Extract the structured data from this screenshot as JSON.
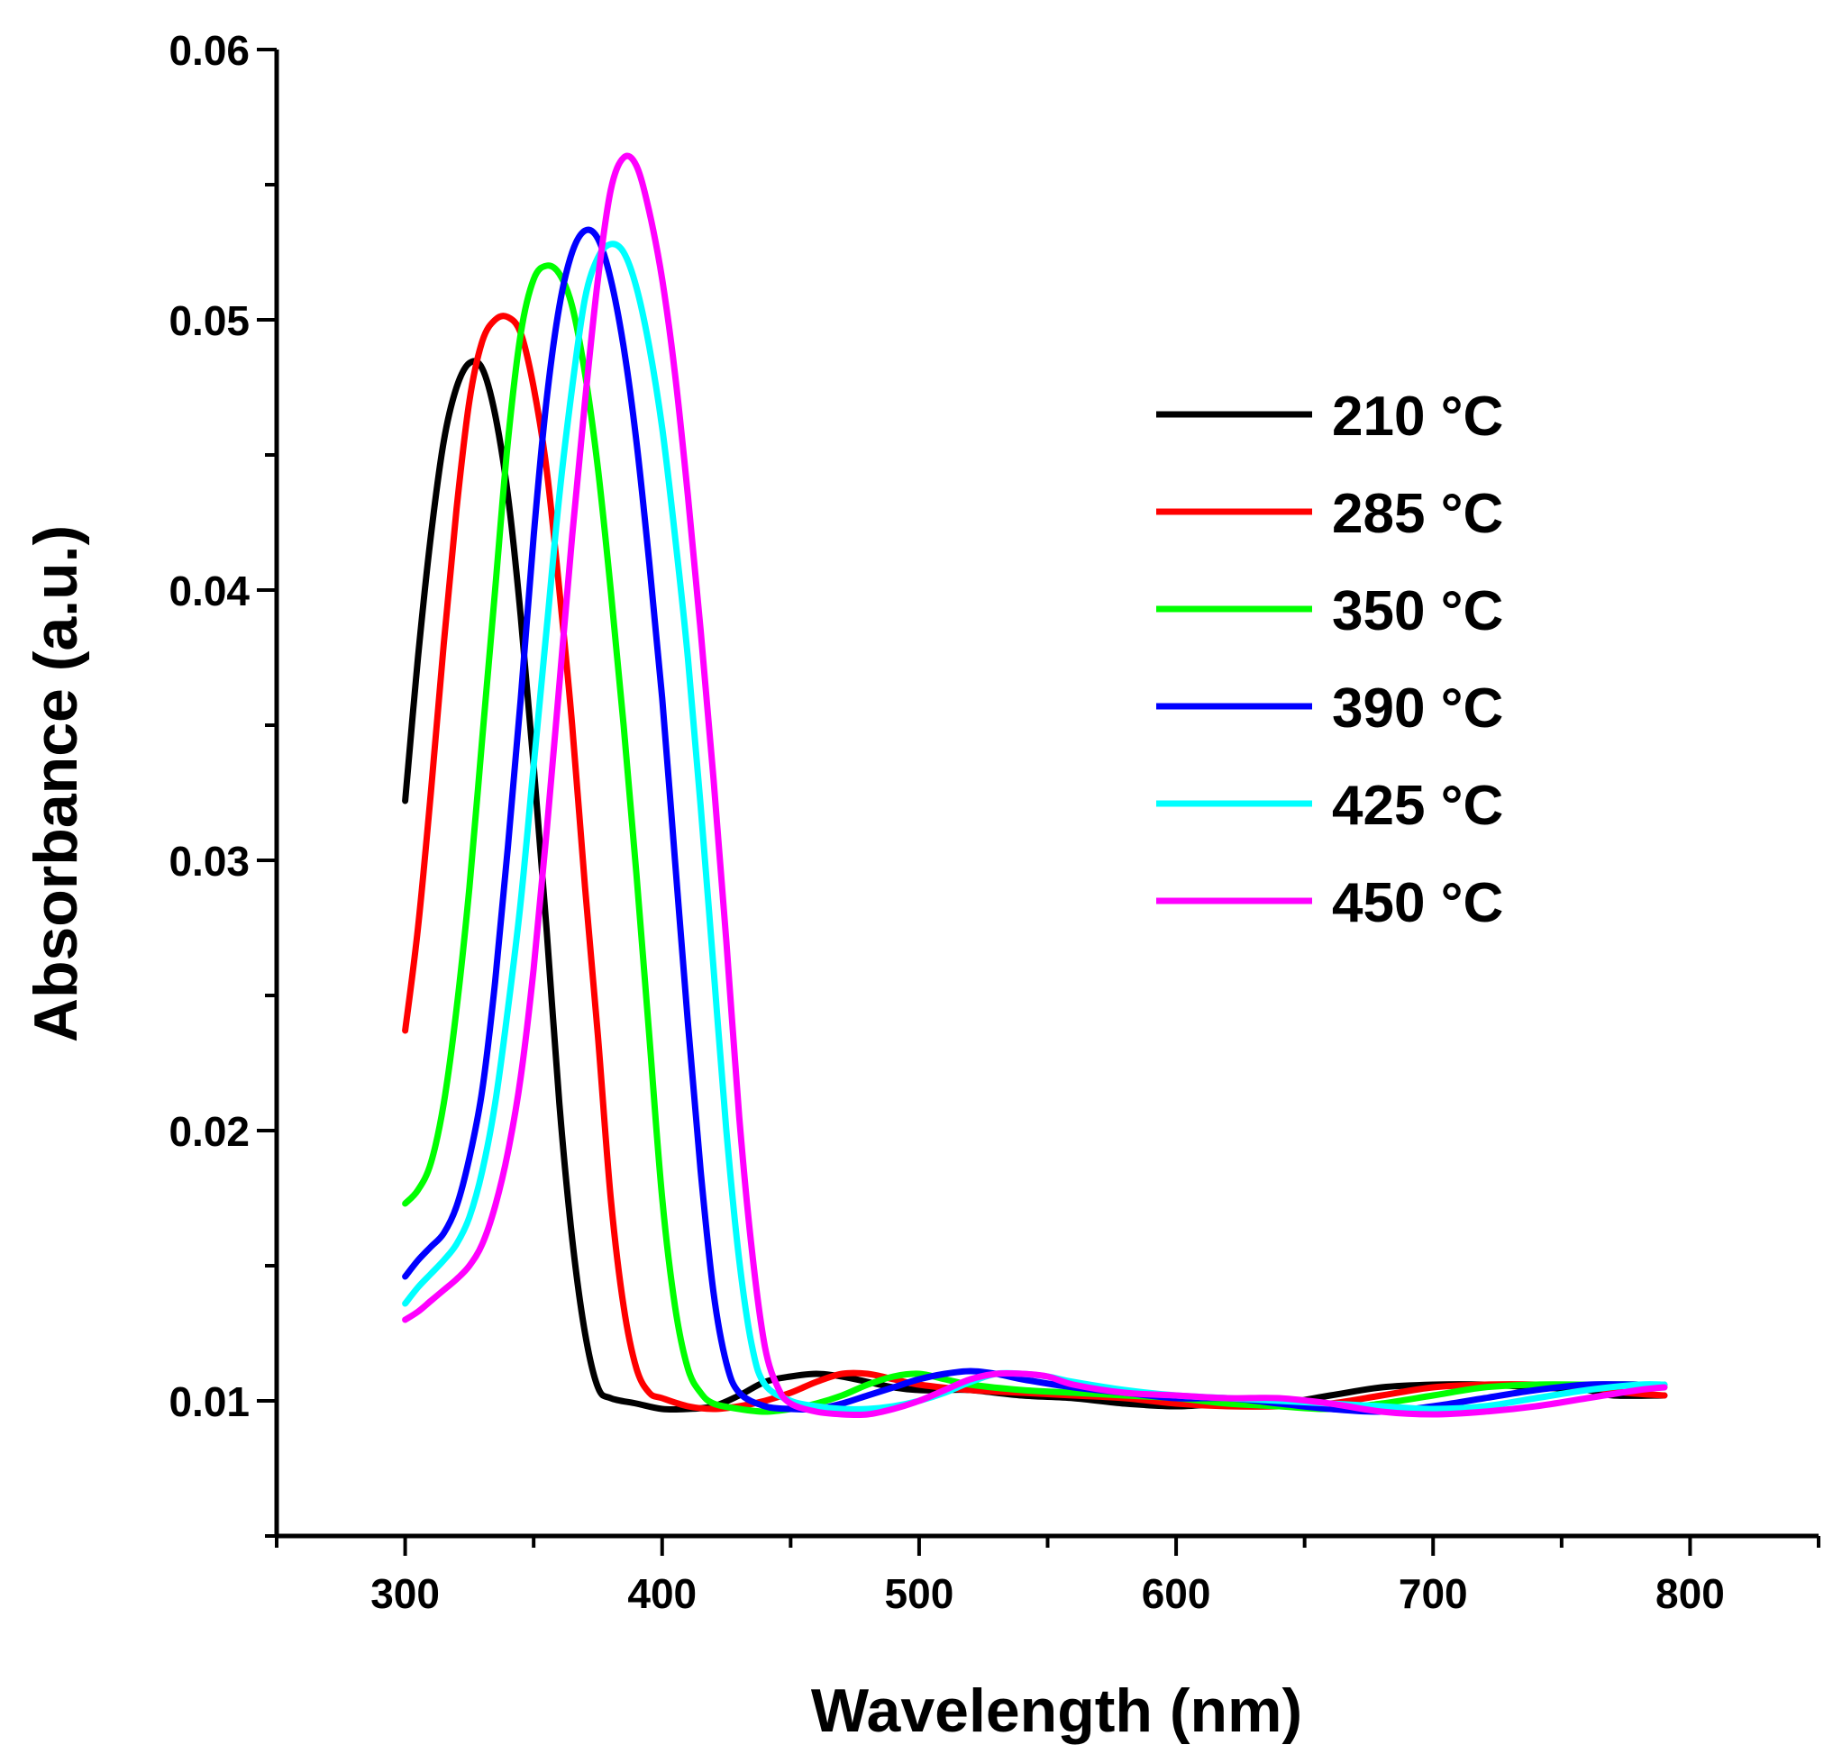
{
  "chart_data": {
    "type": "line",
    "title": "",
    "xlabel": "Wavelength (nm)",
    "ylabel": "Absorbance (a.u.)",
    "xlim": [
      250,
      850
    ],
    "ylim": [
      0.005,
      0.06
    ],
    "x_ticks": [
      300,
      400,
      500,
      600,
      700,
      800
    ],
    "x_tick_labels": [
      "300",
      "400",
      "500",
      "600",
      "700",
      "800"
    ],
    "x_minor_ticks": [
      250,
      350,
      450,
      550,
      650,
      750,
      850
    ],
    "y_ticks": [
      0.01,
      0.02,
      0.03,
      0.04,
      0.05,
      0.06
    ],
    "y_tick_labels": [
      "0.01",
      "0.02",
      "0.03",
      "0.04",
      "0.05",
      "0.06"
    ],
    "y_minor_ticks": [
      0.005,
      0.015,
      0.025,
      0.035,
      0.045,
      0.055
    ],
    "grid": false,
    "legend_position": "right, upper-middle",
    "series": [
      {
        "name": "210 °C",
        "color": "#000000",
        "points": [
          [
            300,
            0.0322
          ],
          [
            305,
            0.0375
          ],
          [
            310,
            0.042
          ],
          [
            315,
            0.0455
          ],
          [
            320,
            0.0475
          ],
          [
            325,
            0.0484
          ],
          [
            330,
            0.0482
          ],
          [
            335,
            0.0465
          ],
          [
            340,
            0.0435
          ],
          [
            345,
            0.039
          ],
          [
            350,
            0.0335
          ],
          [
            355,
            0.0275
          ],
          [
            360,
            0.021
          ],
          [
            365,
            0.016
          ],
          [
            370,
            0.0125
          ],
          [
            375,
            0.0105
          ],
          [
            380,
            0.0101
          ],
          [
            390,
            0.0099
          ],
          [
            400,
            0.0097
          ],
          [
            410,
            0.0097
          ],
          [
            420,
            0.0098
          ],
          [
            430,
            0.0102
          ],
          [
            440,
            0.0107
          ],
          [
            450,
            0.0109
          ],
          [
            460,
            0.011
          ],
          [
            470,
            0.0109
          ],
          [
            480,
            0.0107
          ],
          [
            490,
            0.0105
          ],
          [
            500,
            0.0104
          ],
          [
            510,
            0.0104
          ],
          [
            520,
            0.0104
          ],
          [
            540,
            0.0102
          ],
          [
            560,
            0.0101
          ],
          [
            580,
            0.0099
          ],
          [
            600,
            0.0098
          ],
          [
            620,
            0.0099
          ],
          [
            640,
            0.0099
          ],
          [
            660,
            0.0102
          ],
          [
            680,
            0.0105
          ],
          [
            700,
            0.0106
          ],
          [
            720,
            0.0106
          ],
          [
            740,
            0.0105
          ],
          [
            760,
            0.0104
          ],
          [
            770,
            0.0102
          ],
          [
            790,
            0.0102
          ]
        ]
      },
      {
        "name": "285 °C",
        "color": "#ff0000",
        "points": [
          [
            300,
            0.0237
          ],
          [
            305,
            0.0275
          ],
          [
            310,
            0.0325
          ],
          [
            315,
            0.038
          ],
          [
            320,
            0.043
          ],
          [
            325,
            0.047
          ],
          [
            330,
            0.0492
          ],
          [
            335,
            0.05
          ],
          [
            340,
            0.0501
          ],
          [
            345,
            0.0495
          ],
          [
            350,
            0.0475
          ],
          [
            355,
            0.0445
          ],
          [
            360,
            0.04
          ],
          [
            365,
            0.035
          ],
          [
            370,
            0.029
          ],
          [
            375,
            0.0235
          ],
          [
            380,
            0.0175
          ],
          [
            385,
            0.0135
          ],
          [
            390,
            0.0112
          ],
          [
            395,
            0.0103
          ],
          [
            400,
            0.0101
          ],
          [
            410,
            0.0098
          ],
          [
            420,
            0.0097
          ],
          [
            430,
            0.0098
          ],
          [
            440,
            0.01
          ],
          [
            450,
            0.0103
          ],
          [
            460,
            0.0107
          ],
          [
            470,
            0.011
          ],
          [
            480,
            0.011
          ],
          [
            490,
            0.0108
          ],
          [
            500,
            0.0106
          ],
          [
            520,
            0.0104
          ],
          [
            540,
            0.0103
          ],
          [
            560,
            0.0102
          ],
          [
            580,
            0.0101
          ],
          [
            600,
            0.0099
          ],
          [
            620,
            0.0098
          ],
          [
            640,
            0.0098
          ],
          [
            660,
            0.0099
          ],
          [
            680,
            0.0102
          ],
          [
            700,
            0.0105
          ],
          [
            720,
            0.0106
          ],
          [
            740,
            0.0106
          ],
          [
            760,
            0.0105
          ],
          [
            775,
            0.0103
          ],
          [
            790,
            0.0102
          ]
        ]
      },
      {
        "name": "350 °C",
        "color": "#00ff00",
        "points": [
          [
            300,
            0.0173
          ],
          [
            305,
            0.0178
          ],
          [
            310,
            0.0188
          ],
          [
            315,
            0.021
          ],
          [
            320,
            0.0245
          ],
          [
            325,
            0.029
          ],
          [
            330,
            0.0345
          ],
          [
            335,
            0.04
          ],
          [
            340,
            0.0455
          ],
          [
            345,
            0.0495
          ],
          [
            350,
            0.0515
          ],
          [
            355,
            0.052
          ],
          [
            360,
            0.0517
          ],
          [
            365,
            0.0505
          ],
          [
            370,
            0.048
          ],
          [
            375,
            0.0445
          ],
          [
            380,
            0.04
          ],
          [
            385,
            0.035
          ],
          [
            390,
            0.0295
          ],
          [
            395,
            0.0235
          ],
          [
            400,
            0.0175
          ],
          [
            405,
            0.0135
          ],
          [
            410,
            0.0112
          ],
          [
            415,
            0.0103
          ],
          [
            420,
            0.0099
          ],
          [
            430,
            0.0097
          ],
          [
            440,
            0.0096
          ],
          [
            450,
            0.0097
          ],
          [
            460,
            0.0099
          ],
          [
            470,
            0.0102
          ],
          [
            480,
            0.0106
          ],
          [
            490,
            0.0109
          ],
          [
            500,
            0.011
          ],
          [
            510,
            0.0108
          ],
          [
            520,
            0.0106
          ],
          [
            540,
            0.0104
          ],
          [
            560,
            0.0103
          ],
          [
            580,
            0.0102
          ],
          [
            600,
            0.0101
          ],
          [
            620,
            0.0099
          ],
          [
            640,
            0.0098
          ],
          [
            660,
            0.0097
          ],
          [
            680,
            0.0099
          ],
          [
            700,
            0.0102
          ],
          [
            720,
            0.0105
          ],
          [
            740,
            0.0106
          ],
          [
            760,
            0.0106
          ],
          [
            780,
            0.0106
          ],
          [
            790,
            0.0105
          ]
        ]
      },
      {
        "name": "390 °C",
        "color": "#0000ff",
        "points": [
          [
            300,
            0.0146
          ],
          [
            305,
            0.0152
          ],
          [
            310,
            0.0157
          ],
          [
            315,
            0.0162
          ],
          [
            320,
            0.0172
          ],
          [
            325,
            0.019
          ],
          [
            330,
            0.0215
          ],
          [
            335,
            0.0255
          ],
          [
            340,
            0.0305
          ],
          [
            345,
            0.036
          ],
          [
            350,
            0.042
          ],
          [
            355,
            0.047
          ],
          [
            360,
            0.0505
          ],
          [
            365,
            0.0525
          ],
          [
            370,
            0.0533
          ],
          [
            375,
            0.053
          ],
          [
            380,
            0.0515
          ],
          [
            385,
            0.049
          ],
          [
            390,
            0.0455
          ],
          [
            395,
            0.041
          ],
          [
            400,
            0.036
          ],
          [
            405,
            0.03
          ],
          [
            410,
            0.024
          ],
          [
            415,
            0.0185
          ],
          [
            420,
            0.014
          ],
          [
            425,
            0.0114
          ],
          [
            430,
            0.0103
          ],
          [
            440,
            0.0098
          ],
          [
            450,
            0.0097
          ],
          [
            460,
            0.0097
          ],
          [
            470,
            0.0099
          ],
          [
            480,
            0.0102
          ],
          [
            490,
            0.0105
          ],
          [
            500,
            0.0108
          ],
          [
            510,
            0.011
          ],
          [
            520,
            0.0111
          ],
          [
            530,
            0.011
          ],
          [
            540,
            0.0108
          ],
          [
            560,
            0.0105
          ],
          [
            580,
            0.0103
          ],
          [
            600,
            0.0101
          ],
          [
            620,
            0.0101
          ],
          [
            640,
            0.0099
          ],
          [
            660,
            0.0097
          ],
          [
            680,
            0.0096
          ],
          [
            700,
            0.0098
          ],
          [
            720,
            0.0101
          ],
          [
            740,
            0.0104
          ],
          [
            760,
            0.0106
          ],
          [
            780,
            0.0106
          ],
          [
            790,
            0.0106
          ]
        ]
      },
      {
        "name": "425 °C",
        "color": "#00ffff",
        "points": [
          [
            300,
            0.0136
          ],
          [
            305,
            0.0142
          ],
          [
            310,
            0.0147
          ],
          [
            315,
            0.0152
          ],
          [
            320,
            0.0158
          ],
          [
            325,
            0.0168
          ],
          [
            330,
            0.0185
          ],
          [
            335,
            0.021
          ],
          [
            340,
            0.0245
          ],
          [
            345,
            0.0285
          ],
          [
            350,
            0.0335
          ],
          [
            355,
            0.0385
          ],
          [
            360,
            0.0435
          ],
          [
            365,
            0.0475
          ],
          [
            370,
            0.0508
          ],
          [
            375,
            0.0523
          ],
          [
            380,
            0.0528
          ],
          [
            385,
            0.0525
          ],
          [
            390,
            0.0512
          ],
          [
            395,
            0.049
          ],
          [
            400,
            0.046
          ],
          [
            405,
            0.042
          ],
          [
            410,
            0.0375
          ],
          [
            415,
            0.032
          ],
          [
            420,
            0.026
          ],
          [
            425,
            0.02
          ],
          [
            430,
            0.0152
          ],
          [
            435,
            0.012
          ],
          [
            440,
            0.0106
          ],
          [
            450,
            0.01
          ],
          [
            460,
            0.0098
          ],
          [
            470,
            0.0097
          ],
          [
            480,
            0.0097
          ],
          [
            490,
            0.0098
          ],
          [
            500,
            0.01
          ],
          [
            510,
            0.0103
          ],
          [
            520,
            0.0107
          ],
          [
            530,
            0.011
          ],
          [
            540,
            0.011
          ],
          [
            550,
            0.0109
          ],
          [
            560,
            0.0107
          ],
          [
            580,
            0.0104
          ],
          [
            600,
            0.0102
          ],
          [
            620,
            0.0101
          ],
          [
            640,
            0.01
          ],
          [
            660,
            0.0099
          ],
          [
            680,
            0.0098
          ],
          [
            700,
            0.0097
          ],
          [
            720,
            0.0098
          ],
          [
            740,
            0.0101
          ],
          [
            760,
            0.0104
          ],
          [
            780,
            0.0106
          ],
          [
            790,
            0.0106
          ]
        ]
      },
      {
        "name": "450 °C",
        "color": "#ff00ff",
        "points": [
          [
            300,
            0.013
          ],
          [
            305,
            0.0133
          ],
          [
            310,
            0.0137
          ],
          [
            315,
            0.0141
          ],
          [
            320,
            0.0145
          ],
          [
            325,
            0.015
          ],
          [
            330,
            0.0158
          ],
          [
            335,
            0.0172
          ],
          [
            340,
            0.0192
          ],
          [
            345,
            0.022
          ],
          [
            350,
            0.026
          ],
          [
            355,
            0.031
          ],
          [
            360,
            0.0365
          ],
          [
            365,
            0.042
          ],
          [
            370,
            0.047
          ],
          [
            375,
            0.0515
          ],
          [
            380,
            0.0548
          ],
          [
            385,
            0.056
          ],
          [
            390,
            0.0557
          ],
          [
            395,
            0.054
          ],
          [
            400,
            0.0515
          ],
          [
            405,
            0.048
          ],
          [
            410,
            0.0435
          ],
          [
            415,
            0.0385
          ],
          [
            420,
            0.033
          ],
          [
            425,
            0.027
          ],
          [
            430,
            0.0205
          ],
          [
            435,
            0.0155
          ],
          [
            440,
            0.012
          ],
          [
            445,
            0.0105
          ],
          [
            450,
            0.0099
          ],
          [
            460,
            0.0096
          ],
          [
            470,
            0.0095
          ],
          [
            480,
            0.0095
          ],
          [
            490,
            0.0097
          ],
          [
            500,
            0.01
          ],
          [
            510,
            0.0104
          ],
          [
            520,
            0.0108
          ],
          [
            530,
            0.011
          ],
          [
            540,
            0.011
          ],
          [
            550,
            0.0109
          ],
          [
            560,
            0.0106
          ],
          [
            580,
            0.0103
          ],
          [
            600,
            0.0102
          ],
          [
            620,
            0.0101
          ],
          [
            640,
            0.0101
          ],
          [
            660,
            0.0099
          ],
          [
            680,
            0.0096
          ],
          [
            700,
            0.0095
          ],
          [
            720,
            0.0096
          ],
          [
            740,
            0.0098
          ],
          [
            760,
            0.0101
          ],
          [
            780,
            0.0104
          ],
          [
            790,
            0.0105
          ]
        ]
      }
    ]
  }
}
